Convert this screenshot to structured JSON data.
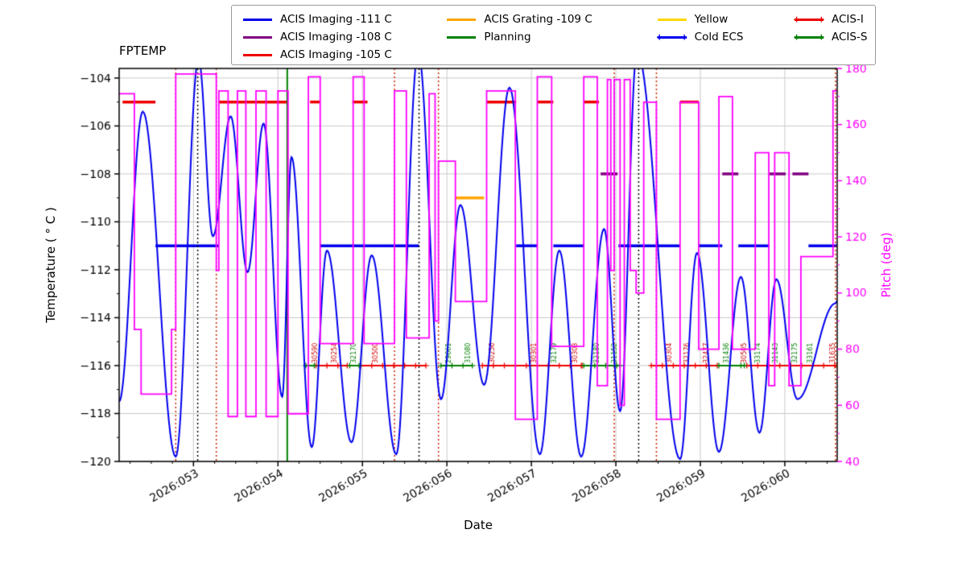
{
  "colors": {
    "fptemp": "#0000ee",
    "pitch": "#ff00ff",
    "limit_105": "#ee0000",
    "limit_108": "#800080",
    "limit_109": "#ffa500",
    "limit_111": "#0000ee",
    "planning": "#008000",
    "yellow": "#ffd700",
    "cold_ecs": "#0000ee",
    "acis_i": "#ee0000",
    "acis_s": "#008000",
    "grid": "#c9c9c9",
    "frame": "#000000",
    "vline_red": "#cc2200",
    "vline_black": "#000000",
    "vline_green": "#008000",
    "obsid_red": "#cc0000",
    "obsid_green": "#008000"
  },
  "chart_data": {
    "type": "line",
    "title": "FPTEMP",
    "xlabel": "Date",
    "ylabel_left": "Temperature ( ° C )",
    "ylabel_right": "Pitch (deg)",
    "x_range": [
      52.12,
      60.62
    ],
    "y_left_range": [
      -120,
      -103.6
    ],
    "y_right_range": [
      40,
      180
    ],
    "x_ticks": [
      {
        "day": 53,
        "label": "2026:053"
      },
      {
        "day": 54,
        "label": "2026:054"
      },
      {
        "day": 55,
        "label": "2026:055"
      },
      {
        "day": 56,
        "label": "2026:056"
      },
      {
        "day": 57,
        "label": "2026:057"
      },
      {
        "day": 58,
        "label": "2026:058"
      },
      {
        "day": 59,
        "label": "2026:059"
      },
      {
        "day": 60,
        "label": "2026:060"
      }
    ],
    "y_left_ticks": [
      {
        "v": -104,
        "label": "−104"
      },
      {
        "v": -106,
        "label": "−106"
      },
      {
        "v": -108,
        "label": "−108"
      },
      {
        "v": -110,
        "label": "−110"
      },
      {
        "v": -112,
        "label": "−112"
      },
      {
        "v": -114,
        "label": "−114"
      },
      {
        "v": -116,
        "label": "−116"
      },
      {
        "v": -118,
        "label": "−118"
      },
      {
        "v": -120,
        "label": "−120"
      }
    ],
    "y_right_ticks": [
      {
        "v": 180,
        "label": "180"
      },
      {
        "v": 160,
        "label": "160"
      },
      {
        "v": 140,
        "label": "140"
      },
      {
        "v": 120,
        "label": "120"
      },
      {
        "v": 100,
        "label": "100"
      },
      {
        "v": 80,
        "label": "80"
      },
      {
        "v": 60,
        "label": "60"
      },
      {
        "v": 40,
        "label": "40"
      }
    ],
    "legend": {
      "items": [
        {
          "label": "ACIS Imaging -111 C",
          "color_key": "limit_111",
          "markers": false
        },
        {
          "label": "ACIS Imaging -108 C",
          "color_key": "limit_108",
          "markers": false
        },
        {
          "label": "ACIS Imaging -105 C",
          "color_key": "limit_105",
          "markers": false
        },
        {
          "label": "ACIS Grating -109 C",
          "color_key": "limit_109",
          "markers": false
        },
        {
          "label": "Planning",
          "color_key": "planning",
          "markers": false
        },
        {
          "label": "Yellow",
          "color_key": "yellow",
          "markers": false
        },
        {
          "label": "Cold ECS",
          "color_key": "cold_ecs",
          "markers": true
        },
        {
          "label": "ACIS-I",
          "color_key": "acis_i",
          "markers": true
        },
        {
          "label": "ACIS-S",
          "color_key": "acis_s",
          "markers": true
        }
      ]
    },
    "series": [
      {
        "name": "FPTEMP",
        "axis": "left",
        "style": "smooth",
        "color_key": "fptemp",
        "points": [
          [
            52.12,
            -117.5
          ],
          [
            52.4,
            -105.4
          ],
          [
            52.79,
            -119.8
          ],
          [
            53.06,
            -103.2
          ],
          [
            53.23,
            -110.6
          ],
          [
            53.44,
            -105.6
          ],
          [
            53.64,
            -112.1
          ],
          [
            53.83,
            -105.9
          ],
          [
            54.05,
            -117.3
          ],
          [
            54.16,
            -107.3
          ],
          [
            54.4,
            -119.4
          ],
          [
            54.58,
            -111.2
          ],
          [
            54.87,
            -119.2
          ],
          [
            55.11,
            -111.4
          ],
          [
            55.4,
            -119.7
          ],
          [
            55.66,
            -102.9
          ],
          [
            55.93,
            -117.4
          ],
          [
            56.16,
            -109.3
          ],
          [
            56.44,
            -116.8
          ],
          [
            56.74,
            -104.4
          ],
          [
            57.1,
            -119.7
          ],
          [
            57.33,
            -111.2
          ],
          [
            57.59,
            -119.8
          ],
          [
            57.86,
            -110.3
          ],
          [
            58.05,
            -117.9
          ],
          [
            58.25,
            -102.9
          ],
          [
            58.76,
            -119.9
          ],
          [
            58.96,
            -111.3
          ],
          [
            59.22,
            -119.6
          ],
          [
            59.48,
            -112.3
          ],
          [
            59.7,
            -118.8
          ],
          [
            59.9,
            -112.4
          ],
          [
            60.15,
            -117.4
          ],
          [
            60.6,
            -113.4
          ],
          [
            60.62,
            -113.3
          ]
        ]
      },
      {
        "name": "Pitch",
        "axis": "right",
        "style": "step",
        "color_key": "pitch",
        "points": [
          [
            52.12,
            171
          ],
          [
            52.3,
            87
          ],
          [
            52.38,
            64
          ],
          [
            52.74,
            87
          ],
          [
            52.79,
            178
          ],
          [
            53.27,
            108
          ],
          [
            53.3,
            172
          ],
          [
            53.41,
            56
          ],
          [
            53.52,
            172
          ],
          [
            53.62,
            56
          ],
          [
            53.74,
            172
          ],
          [
            53.86,
            56
          ],
          [
            54.0,
            172
          ],
          [
            54.12,
            57
          ],
          [
            54.36,
            177
          ],
          [
            54.5,
            82
          ],
          [
            54.89,
            177
          ],
          [
            55.02,
            82
          ],
          [
            55.38,
            172
          ],
          [
            55.52,
            84
          ],
          [
            55.79,
            171
          ],
          [
            55.86,
            90
          ],
          [
            55.9,
            147
          ],
          [
            56.1,
            97
          ],
          [
            56.47,
            172
          ],
          [
            56.81,
            55
          ],
          [
            57.07,
            177
          ],
          [
            57.24,
            81
          ],
          [
            57.62,
            177
          ],
          [
            57.78,
            67
          ],
          [
            57.9,
            176
          ],
          [
            57.94,
            108
          ],
          [
            57.98,
            176
          ],
          [
            58.05,
            60
          ],
          [
            58.1,
            176
          ],
          [
            58.17,
            108
          ],
          [
            58.24,
            100
          ],
          [
            58.33,
            168
          ],
          [
            58.48,
            55
          ],
          [
            58.76,
            168
          ],
          [
            58.98,
            80
          ],
          [
            59.22,
            170
          ],
          [
            59.38,
            80
          ],
          [
            59.65,
            150
          ],
          [
            59.81,
            67
          ],
          [
            59.88,
            150
          ],
          [
            60.05,
            67
          ],
          [
            60.19,
            113
          ],
          [
            60.57,
            172
          ],
          [
            60.62,
            172
          ]
        ]
      }
    ],
    "limit_segments": [
      {
        "label": "ACIS Imaging -105 C",
        "temp": -105,
        "color_key": "limit_105",
        "intervals": [
          [
            52.16,
            52.55
          ],
          [
            53.3,
            54.11
          ],
          [
            54.38,
            54.5
          ],
          [
            54.88,
            55.06
          ],
          [
            56.47,
            56.82
          ],
          [
            57.07,
            57.26
          ],
          [
            57.62,
            57.8
          ],
          [
            58.76,
            58.98
          ]
        ]
      },
      {
        "label": "ACIS Imaging -108 C",
        "temp": -108,
        "color_key": "limit_108",
        "intervals": [
          [
            57.82,
            58.02
          ],
          [
            59.26,
            59.45
          ],
          [
            59.82,
            60.01
          ],
          [
            60.09,
            60.28
          ]
        ]
      },
      {
        "label": "ACIS Grating -109 C",
        "temp": -109,
        "color_key": "limit_109",
        "intervals": [
          [
            56.1,
            56.44
          ]
        ]
      },
      {
        "label": "ACIS Imaging -111 C",
        "temp": -111,
        "color_key": "limit_111",
        "intervals": [
          [
            52.55,
            53.3
          ],
          [
            54.5,
            55.67
          ],
          [
            56.82,
            57.07
          ],
          [
            57.26,
            57.62
          ],
          [
            58.03,
            58.76
          ],
          [
            58.98,
            59.26
          ],
          [
            59.45,
            59.82
          ],
          [
            60.28,
            60.62
          ]
        ]
      }
    ],
    "instrument_segments": [
      {
        "name": "ACIS-I",
        "temp": -116,
        "color_key": "acis_i",
        "intervals": [
          [
            54.45,
            54.82
          ],
          [
            54.98,
            55.75
          ],
          [
            56.42,
            57.6
          ],
          [
            58.42,
            59.2
          ],
          [
            59.55,
            60.62
          ]
        ]
      },
      {
        "name": "ACIS-S",
        "temp": -116,
        "color_key": "acis_s",
        "intervals": [
          [
            54.33,
            54.43
          ],
          [
            54.85,
            54.96
          ],
          [
            55.93,
            56.3
          ],
          [
            57.62,
            58.05
          ],
          [
            59.22,
            59.52
          ]
        ]
      },
      {
        "name": "Cold ECS",
        "temp": -116,
        "color_key": "cold_ecs",
        "intervals": []
      }
    ],
    "vlines": [
      {
        "day": 52.79,
        "color_key": "vline_red",
        "style": "dotted"
      },
      {
        "day": 53.05,
        "color_key": "vline_black",
        "style": "dotted"
      },
      {
        "day": 53.27,
        "color_key": "vline_red",
        "style": "dotted"
      },
      {
        "day": 54.11,
        "color_key": "vline_green",
        "style": "solid"
      },
      {
        "day": 55.38,
        "color_key": "vline_red",
        "style": "dotted"
      },
      {
        "day": 55.67,
        "color_key": "vline_black",
        "style": "dotted"
      },
      {
        "day": 55.9,
        "color_key": "vline_red",
        "style": "dotted"
      },
      {
        "day": 57.98,
        "color_key": "vline_red",
        "style": "dotted"
      },
      {
        "day": 58.27,
        "color_key": "vline_black",
        "style": "dotted"
      },
      {
        "day": 58.48,
        "color_key": "vline_red",
        "style": "dotted"
      },
      {
        "day": 60.6,
        "color_key": "vline_red",
        "style": "dotted"
      }
    ],
    "obsid_labels": [
      {
        "day": 54.43,
        "text": "30590",
        "color_key": "obsid_red"
      },
      {
        "day": 54.65,
        "text": "30254",
        "color_key": "obsid_red"
      },
      {
        "day": 54.88,
        "text": "32170",
        "color_key": "obsid_green"
      },
      {
        "day": 55.14,
        "text": "30500",
        "color_key": "obsid_red"
      },
      {
        "day": 56.01,
        "text": "29661",
        "color_key": "obsid_green"
      },
      {
        "day": 56.24,
        "text": "31080",
        "color_key": "obsid_green"
      },
      {
        "day": 56.52,
        "text": "30256",
        "color_key": "obsid_red"
      },
      {
        "day": 57.02,
        "text": "30301",
        "color_key": "obsid_red"
      },
      {
        "day": 57.26,
        "text": "32179",
        "color_key": "obsid_green"
      },
      {
        "day": 57.5,
        "text": "30303",
        "color_key": "obsid_red"
      },
      {
        "day": 57.76,
        "text": "32180",
        "color_key": "obsid_green"
      },
      {
        "day": 57.97,
        "text": "31152",
        "color_key": "obsid_green"
      },
      {
        "day": 58.62,
        "text": "30304",
        "color_key": "obsid_red"
      },
      {
        "day": 58.83,
        "text": "32176",
        "color_key": "obsid_red"
      },
      {
        "day": 59.06,
        "text": "32477",
        "color_key": "obsid_red"
      },
      {
        "day": 59.29,
        "text": "31436",
        "color_key": "obsid_green"
      },
      {
        "day": 59.5,
        "text": "30505",
        "color_key": "obsid_red"
      },
      {
        "day": 59.67,
        "text": "33174",
        "color_key": "obsid_green"
      },
      {
        "day": 59.88,
        "text": "31143",
        "color_key": "obsid_green"
      },
      {
        "day": 60.1,
        "text": "32175",
        "color_key": "obsid_green"
      },
      {
        "day": 60.29,
        "text": "33161",
        "color_key": "obsid_green"
      },
      {
        "day": 60.55,
        "text": "31635",
        "color_key": "obsid_red"
      }
    ]
  }
}
